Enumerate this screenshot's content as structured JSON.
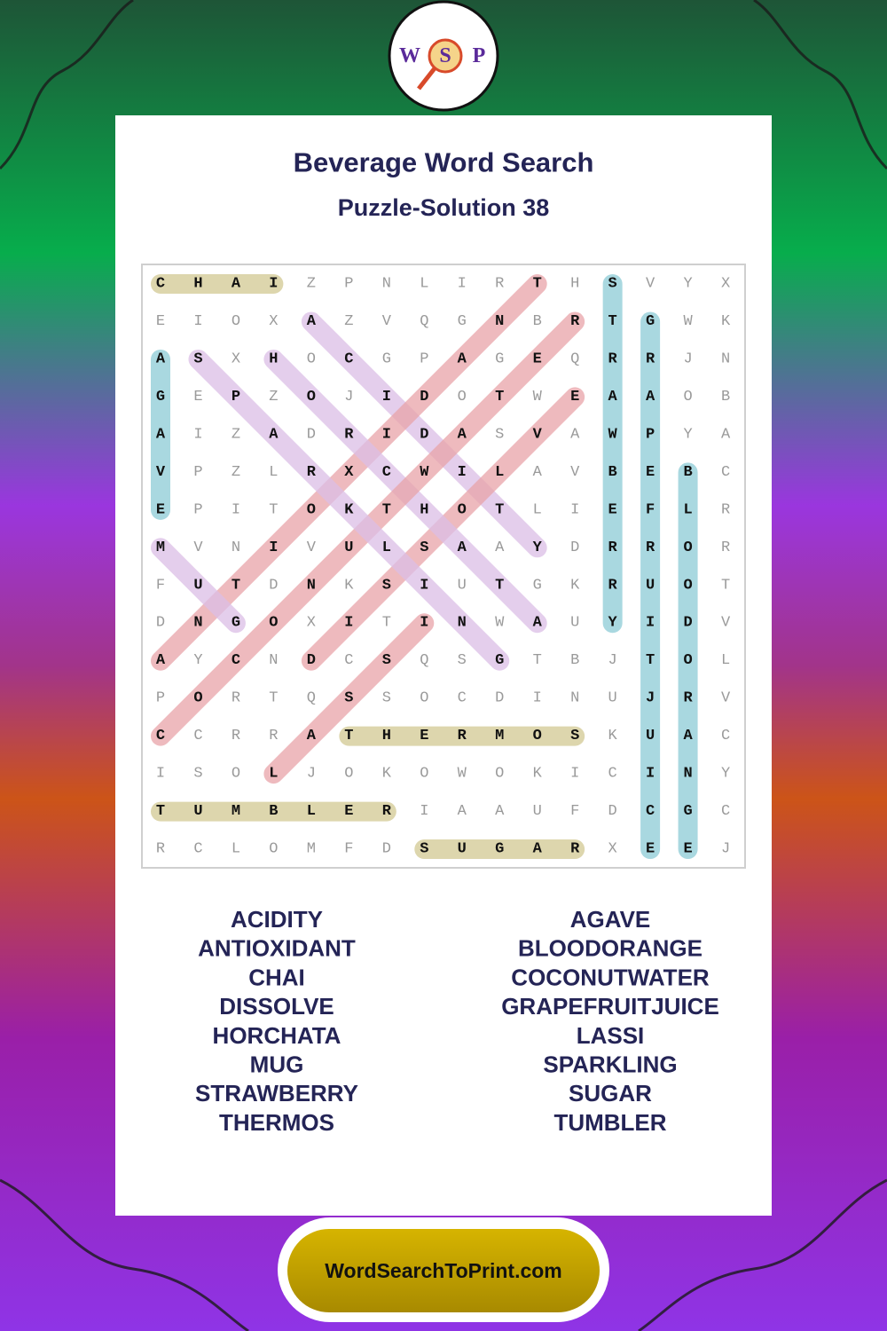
{
  "header": {
    "logo": [
      "W",
      "S",
      "P"
    ],
    "title": "Beverage Word Search",
    "subtitle": "Puzzle-Solution 38"
  },
  "grid": [
    [
      "C",
      "H",
      "A",
      "I",
      "Z",
      "P",
      "N",
      "L",
      "I",
      "R",
      "T",
      "H",
      "S",
      "V",
      "Y",
      "X"
    ],
    [
      "E",
      "I",
      "O",
      "X",
      "A",
      "Z",
      "V",
      "Q",
      "G",
      "N",
      "B",
      "R",
      "T",
      "G",
      "W",
      "K"
    ],
    [
      "A",
      "S",
      "X",
      "H",
      "O",
      "C",
      "G",
      "P",
      "A",
      "G",
      "E",
      "Q",
      "R",
      "R",
      "J",
      "N"
    ],
    [
      "G",
      "E",
      "P",
      "Z",
      "O",
      "J",
      "I",
      "D",
      "O",
      "T",
      "W",
      "E",
      "A",
      "A",
      "O",
      "B"
    ],
    [
      "A",
      "I",
      "Z",
      "A",
      "D",
      "R",
      "I",
      "D",
      "A",
      "S",
      "V",
      "A",
      "W",
      "P",
      "Y",
      "A"
    ],
    [
      "V",
      "P",
      "Z",
      "L",
      "R",
      "X",
      "C",
      "W",
      "I",
      "L",
      "A",
      "V",
      "B",
      "E",
      "B",
      "C"
    ],
    [
      "E",
      "P",
      "I",
      "T",
      "O",
      "K",
      "T",
      "H",
      "O",
      "T",
      "L",
      "I",
      "E",
      "F",
      "L",
      "R"
    ],
    [
      "M",
      "V",
      "N",
      "I",
      "V",
      "U",
      "L",
      "S",
      "A",
      "A",
      "Y",
      "D",
      "R",
      "R",
      "O",
      "R"
    ],
    [
      "F",
      "U",
      "T",
      "D",
      "N",
      "K",
      "S",
      "I",
      "U",
      "T",
      "G",
      "K",
      "R",
      "U",
      "O",
      "T"
    ],
    [
      "D",
      "N",
      "G",
      "O",
      "X",
      "I",
      "T",
      "I",
      "N",
      "W",
      "A",
      "U",
      "Y",
      "I",
      "D",
      "V"
    ],
    [
      "A",
      "Y",
      "C",
      "N",
      "D",
      "C",
      "S",
      "Q",
      "S",
      "G",
      "T",
      "B",
      "J",
      "T",
      "O",
      "L"
    ],
    [
      "P",
      "O",
      "R",
      "T",
      "Q",
      "S",
      "S",
      "O",
      "C",
      "D",
      "I",
      "N",
      "U",
      "J",
      "R",
      "V"
    ],
    [
      "C",
      "C",
      "R",
      "R",
      "A",
      "T",
      "H",
      "E",
      "R",
      "M",
      "O",
      "S",
      "K",
      "U",
      "A",
      "C"
    ],
    [
      "I",
      "S",
      "O",
      "L",
      "J",
      "O",
      "K",
      "O",
      "W",
      "O",
      "K",
      "I",
      "C",
      "I",
      "N",
      "Y"
    ],
    [
      "T",
      "U",
      "M",
      "B",
      "L",
      "E",
      "R",
      "I",
      "A",
      "A",
      "U",
      "F",
      "D",
      "C",
      "G",
      "C"
    ],
    [
      "R",
      "C",
      "L",
      "O",
      "M",
      "F",
      "D",
      "S",
      "U",
      "G",
      "A",
      "R",
      "X",
      "E",
      "E",
      "J"
    ]
  ],
  "words": [
    [
      "ACIDITY",
      "ANTIOXIDANT",
      "CHAI",
      "DISSOLVE",
      "HORCHATA",
      "MUG",
      "STRAWBERRY",
      "THERMOS"
    ],
    [
      "AGAVE",
      "BLOODORANGE",
      "COCONUTWATER",
      "GRAPEFRUITJUICE",
      "LASSI",
      "SPARKLING",
      "SUGAR",
      "TUMBLER"
    ]
  ],
  "highlight_colors": {
    "horizontal": "#ddd6ad",
    "vertical": "#a9d8e0",
    "diagonal_up": "#e8a3a8",
    "diagonal_down": "#dbbde6"
  },
  "footer": "WordSearchToPrint.com"
}
